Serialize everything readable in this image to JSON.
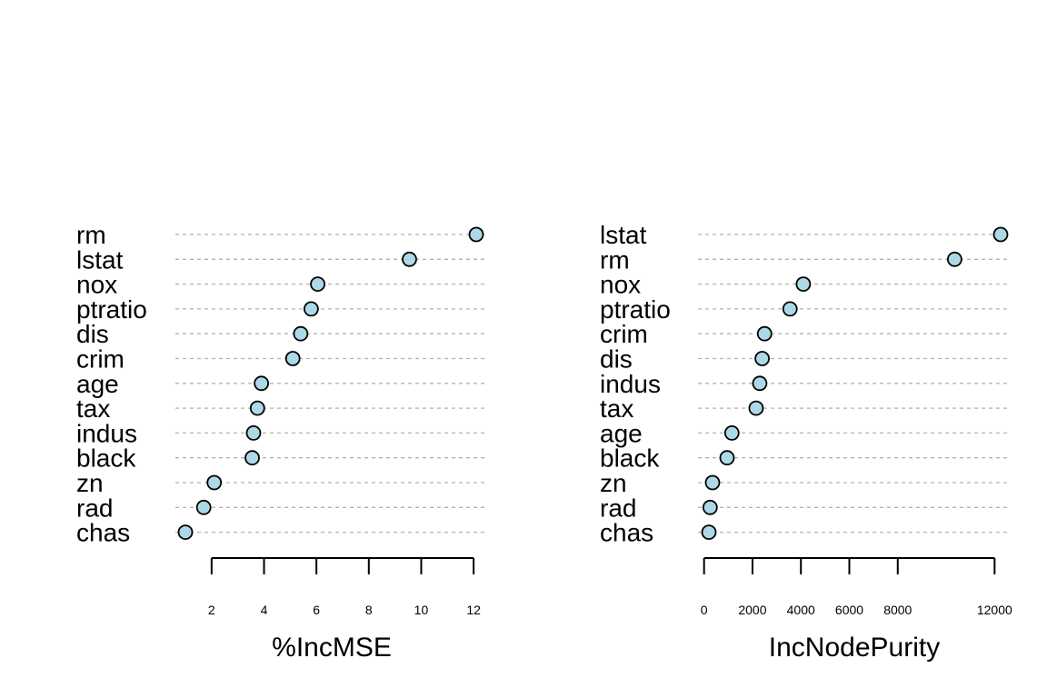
{
  "chart_data": [
    {
      "type": "dotchart",
      "xlabel": "%IncMSE",
      "categories": [
        "rm",
        "lstat",
        "nox",
        "ptratio",
        "dis",
        "crim",
        "age",
        "tax",
        "indus",
        "black",
        "zn",
        "rad",
        "chas"
      ],
      "values": [
        12.1,
        9.55,
        6.05,
        5.8,
        5.4,
        5.1,
        3.9,
        3.75,
        3.6,
        3.55,
        2.1,
        1.7,
        1.0
      ],
      "xticks": [
        2,
        4,
        6,
        8,
        10,
        12
      ],
      "xlim": [
        0.8,
        12.5
      ],
      "point_color": "#add8e6"
    },
    {
      "type": "dotchart",
      "xlabel": "IncNodePurity",
      "categories": [
        "lstat",
        "rm",
        "nox",
        "ptratio",
        "crim",
        "dis",
        "indus",
        "tax",
        "age",
        "black",
        "zn",
        "rad",
        "chas"
      ],
      "values": [
        12250,
        10350,
        4100,
        3550,
        2500,
        2400,
        2300,
        2150,
        1150,
        950,
        350,
        250,
        200
      ],
      "xticks": [
        0,
        2000,
        4000,
        6000,
        8000,
        12000
      ],
      "xlim": [
        -400,
        12500
      ],
      "point_color": "#add8e6"
    }
  ]
}
